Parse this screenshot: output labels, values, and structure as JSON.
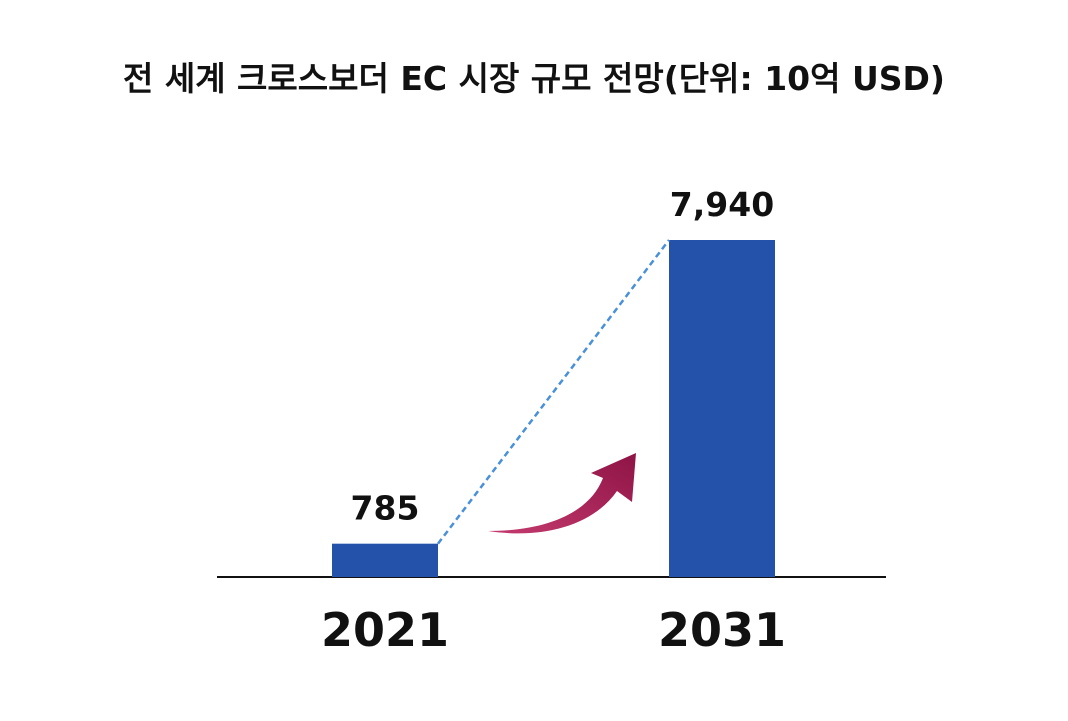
{
  "chart_data": {
    "type": "bar",
    "title": "전 세계 크로스보더 EC 시장 규모 전망(단위: 10억 USD)",
    "categories": [
      "2021",
      "2031"
    ],
    "values": [
      785,
      7940
    ],
    "data_labels": [
      "785",
      "7,940"
    ],
    "xlabel": "",
    "ylabel": "",
    "ylim": [
      0,
      7940
    ],
    "grid": false,
    "legend": "none",
    "colors": {
      "bar": "#2452AA",
      "trend_line": "#4A90D9",
      "arrow": "#9E1A4E",
      "axis": "#111111"
    },
    "annotations": [
      {
        "kind": "dashed-trend-line",
        "from": "2021",
        "to": "2031"
      },
      {
        "kind": "growth-arrow-icon"
      }
    ]
  }
}
